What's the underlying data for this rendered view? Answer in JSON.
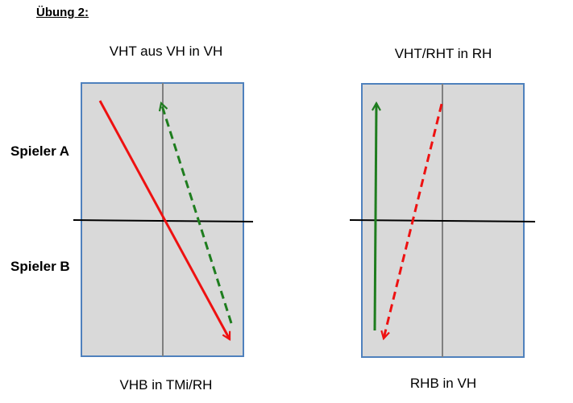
{
  "heading": "Übung 2:",
  "players": {
    "a": "Spieler A",
    "b": "Spieler B"
  },
  "left_court": {
    "top_label": "VHT aus VH in VH",
    "bottom_label": "VHB in TMi/RH"
  },
  "right_court": {
    "top_label": "VHT/RHT in RH",
    "bottom_label": "RHB in VH"
  },
  "colors": {
    "court_fill": "#d9d9d9",
    "court_border": "#4f81bd",
    "center_line": "#808080",
    "net": "#000000",
    "red": "#ee1111",
    "green": "#1e7d1e"
  }
}
